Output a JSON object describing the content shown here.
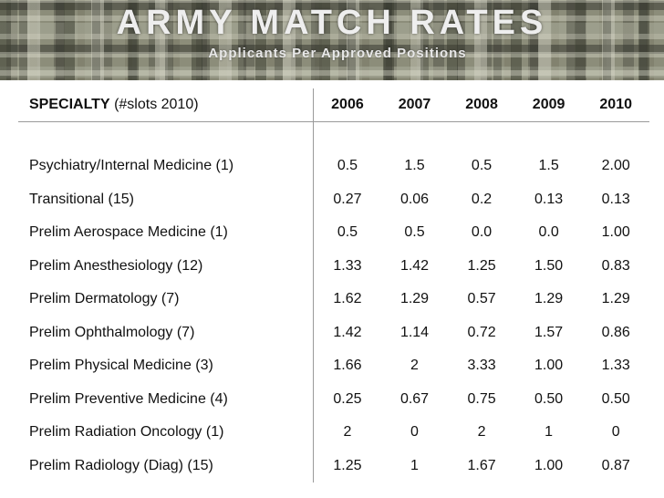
{
  "header": {
    "title": "ARMY MATCH RATES",
    "subtitle": "Applicants Per Approved Positions"
  },
  "table": {
    "specialty_label": "SPECIALTY",
    "specialty_note": "(#slots 2010)",
    "years": [
      "2006",
      "2007",
      "2008",
      "2009",
      "2010"
    ],
    "rows": [
      {
        "specialty": "Psychiatry/Internal Medicine (1)",
        "values": [
          "0.5",
          "1.5",
          "0.5",
          "1.5",
          "2.00"
        ]
      },
      {
        "specialty": "Transitional (15)",
        "values": [
          "0.27",
          "0.06",
          "0.2",
          "0.13",
          "0.13"
        ]
      },
      {
        "specialty": "Prelim Aerospace Medicine (1)",
        "values": [
          "0.5",
          "0.5",
          "0.0",
          "0.0",
          "1.00"
        ]
      },
      {
        "specialty": "Prelim Anesthesiology (12)",
        "values": [
          "1.33",
          "1.42",
          "1.25",
          "1.50",
          "0.83"
        ]
      },
      {
        "specialty": "Prelim Dermatology (7)",
        "values": [
          "1.62",
          "1.29",
          "0.57",
          "1.29",
          "1.29"
        ]
      },
      {
        "specialty": "Prelim Ophthalmology (7)",
        "values": [
          "1.42",
          "1.14",
          "0.72",
          "1.57",
          "0.86"
        ]
      },
      {
        "specialty": "Prelim Physical Medicine (3)",
        "values": [
          "1.66",
          "2",
          "3.33",
          "1.00",
          "1.33"
        ]
      },
      {
        "specialty": "Prelim Preventive Medicine (4)",
        "values": [
          "0.25",
          "0.67",
          "0.75",
          "0.50",
          "0.50"
        ]
      },
      {
        "specialty": "Prelim Radiation Oncology (1)",
        "values": [
          "2",
          "0",
          "2",
          "1",
          "0"
        ]
      },
      {
        "specialty": "Prelim Radiology (Diag) (15)",
        "values": [
          "1.25",
          "1",
          "1.67",
          "1.00",
          "0.87"
        ]
      }
    ]
  }
}
